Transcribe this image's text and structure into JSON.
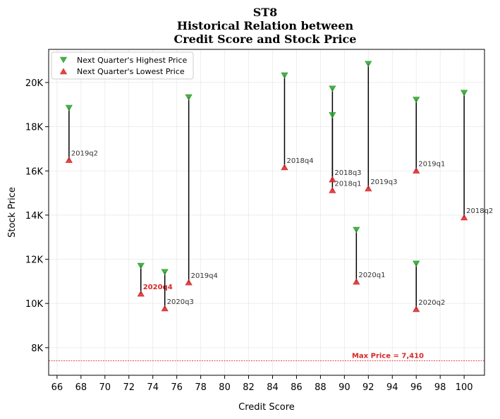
{
  "chart_data": {
    "type": "scatter",
    "title_lines": [
      "ST8",
      "Historical Relation between",
      "Credit Score and Stock Price"
    ],
    "xlabel": "Credit Score",
    "ylabel": "Stock Price",
    "xlim": [
      65.3,
      101.7
    ],
    "ylim": [
      6750,
      21500
    ],
    "xticks": [
      66,
      68,
      70,
      72,
      74,
      76,
      78,
      80,
      82,
      84,
      86,
      88,
      90,
      92,
      94,
      96,
      98,
      100
    ],
    "yticks": [
      {
        "value": 8000,
        "label": "8K"
      },
      {
        "value": 10000,
        "label": "10K"
      },
      {
        "value": 12000,
        "label": "12K"
      },
      {
        "value": 14000,
        "label": "14K"
      },
      {
        "value": 16000,
        "label": "16K"
      },
      {
        "value": 18000,
        "label": "18K"
      },
      {
        "value": 20000,
        "label": "20K"
      }
    ],
    "grid": true,
    "legend_position": "top-left",
    "series": [
      {
        "name": "Next Quarter's Highest Price",
        "marker": "triangle-down",
        "color": "#2ca02c"
      },
      {
        "name": "Next Quarter's Lowest Price",
        "marker": "triangle-up",
        "color": "#d62728"
      }
    ],
    "points": [
      {
        "x": 67,
        "high": 18850,
        "low": 16500,
        "label": "2019q2",
        "highlight": false
      },
      {
        "x": 73,
        "high": 11700,
        "low": 10450,
        "label": "2020q4",
        "highlight": true
      },
      {
        "x": 75,
        "high": 11420,
        "low": 9780,
        "label": "2020q3",
        "highlight": false
      },
      {
        "x": 77,
        "high": 19330,
        "low": 10960,
        "label": "2019q4",
        "highlight": false
      },
      {
        "x": 85,
        "high": 20320,
        "low": 16170,
        "label": "2018q4",
        "highlight": false
      },
      {
        "x": 89,
        "high": 19720,
        "low": 15130,
        "label": "2018q1",
        "highlight": false
      },
      {
        "x": 89,
        "high": 18520,
        "low": 15620,
        "label": "2018q3",
        "highlight": false
      },
      {
        "x": 91,
        "high": 13330,
        "low": 10990,
        "label": "2020q1",
        "highlight": false
      },
      {
        "x": 92,
        "high": 20840,
        "low": 15210,
        "label": "2019q3",
        "highlight": false
      },
      {
        "x": 96,
        "high": 19220,
        "low": 16020,
        "label": "2019q1",
        "highlight": false
      },
      {
        "x": 96,
        "high": 11800,
        "low": 9750,
        "label": "2020q2",
        "highlight": false
      },
      {
        "x": 100,
        "high": 19530,
        "low": 13900,
        "label": "2018q2",
        "highlight": false
      }
    ],
    "reference_line": {
      "value": 7410,
      "label": "Max Price = 7,410",
      "color": "#d62728"
    }
  }
}
